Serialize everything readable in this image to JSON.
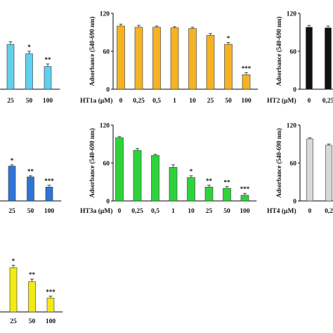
{
  "chart_data": [
    {
      "type": "bar",
      "id": "panel-top-left",
      "color": "#5fd0ef",
      "xlabel": "",
      "ylabel": "",
      "ylim": [
        0,
        120
      ],
      "show_y_ticks": false,
      "categories": [
        "25",
        "50",
        "100"
      ],
      "values": [
        71,
        56,
        36
      ],
      "errors": [
        4,
        4,
        4
      ],
      "significance": [
        "",
        "*",
        "**"
      ]
    },
    {
      "type": "bar",
      "id": "panel-top-middle",
      "color": "#f5b223",
      "xlabel": "HT1a (µM)",
      "ylabel": "Adsorbance (540-690 nm)",
      "ylim": [
        0,
        120
      ],
      "show_y_ticks": true,
      "yticks": [
        "0",
        "60",
        "120"
      ],
      "categories": [
        "0",
        "0,25",
        "0,5",
        "1",
        "10",
        "25",
        "50",
        "100"
      ],
      "values": [
        100,
        98,
        98,
        97,
        96,
        85,
        71,
        23
      ],
      "errors": [
        3,
        3,
        2,
        2,
        2,
        3,
        3,
        3
      ],
      "significance": [
        "",
        "",
        "",
        "",
        "",
        "",
        "*",
        "***"
      ]
    },
    {
      "type": "bar",
      "id": "panel-top-right",
      "color": "#111111",
      "xlabel": "HT2 (µM)",
      "ylabel": "Adsorbance (540-690 nm)",
      "ylim": [
        0,
        120
      ],
      "show_y_ticks": true,
      "yticks": [
        "0",
        "60",
        "120"
      ],
      "categories": [
        "0",
        "0,25"
      ],
      "values": [
        98,
        97
      ],
      "errors": [
        3,
        3
      ],
      "significance": [
        "",
        ""
      ]
    },
    {
      "type": "bar",
      "id": "panel-mid-left",
      "color": "#2f74d6",
      "xlabel": "",
      "ylabel": "",
      "ylim": [
        0,
        120
      ],
      "show_y_ticks": false,
      "categories": [
        "25",
        "50",
        "100"
      ],
      "values": [
        55,
        38,
        22
      ],
      "errors": [
        2,
        2,
        3
      ],
      "significance": [
        "*",
        "**",
        "***"
      ]
    },
    {
      "type": "bar",
      "id": "panel-mid-middle",
      "color": "#2ed33c",
      "xlabel": "HT3a (µM)",
      "ylabel": "Adsorbance (540-690 nm)",
      "ylim": [
        0,
        120
      ],
      "show_y_ticks": true,
      "yticks": [
        "0",
        "60",
        "120"
      ],
      "categories": [
        "0",
        "0,25",
        "0,5",
        "1",
        "10",
        "25",
        "50",
        "100"
      ],
      "values": [
        100,
        80,
        72,
        53,
        37,
        22,
        20,
        9
      ],
      "errors": [
        2,
        3,
        2,
        4,
        3,
        3,
        3,
        3
      ],
      "significance": [
        "",
        "",
        "",
        "",
        "*",
        "**",
        "**",
        "***"
      ]
    },
    {
      "type": "bar",
      "id": "panel-mid-right",
      "color": "#d9d9d9",
      "xlabel": "HT4 (µM)",
      "ylabel": "Adsorbance (540-690 nm)",
      "ylim": [
        0,
        120
      ],
      "show_y_ticks": true,
      "yticks": [
        "0",
        "60",
        "120"
      ],
      "categories": [
        "0",
        "0,2"
      ],
      "values": [
        98,
        88
      ],
      "errors": [
        2,
        2
      ],
      "significance": [
        "",
        ""
      ]
    },
    {
      "type": "bar",
      "id": "panel-bottom-left",
      "color": "#f2ea16",
      "xlabel": "",
      "ylabel": "",
      "ylim": [
        0,
        120
      ],
      "show_y_ticks": false,
      "categories": [
        "25",
        "50",
        "100"
      ],
      "values": [
        70,
        48,
        22
      ],
      "errors": [
        4,
        4,
        3
      ],
      "significance": [
        "*",
        "**",
        "***"
      ]
    }
  ]
}
